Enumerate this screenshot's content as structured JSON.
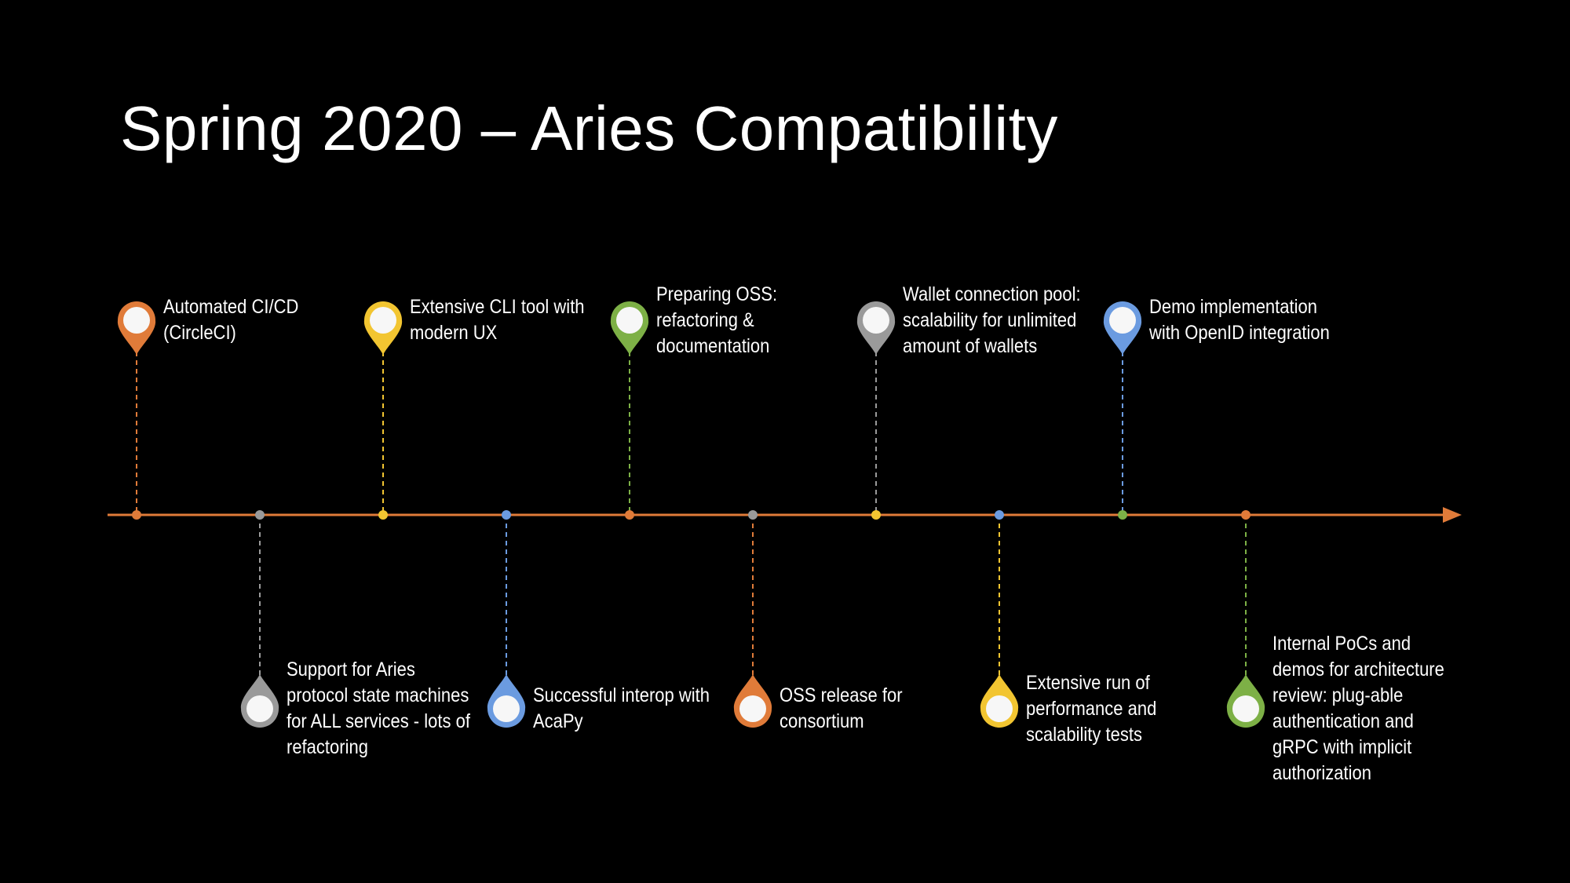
{
  "title": "Spring 2020 – Aries Compatibility",
  "colors": {
    "axis": "#e07b39",
    "orange": "#e07b39",
    "gray": "#9a9a9a",
    "yellow": "#f2c531",
    "blue": "#6b9be0",
    "green": "#7db046",
    "pin_inner": "#f7f7f7"
  },
  "milestones": [
    {
      "id": "m1",
      "color": "orange",
      "position": "above",
      "icon": "map-pin-icon",
      "text": "Automated CI/CD\n(CircleCI)"
    },
    {
      "id": "m2",
      "color": "gray",
      "position": "below",
      "icon": "map-pin-icon",
      "text": "Support for Aries\nprotocol state machines\nfor ALL services - lots of\nrefactoring"
    },
    {
      "id": "m3",
      "color": "yellow",
      "position": "above",
      "icon": "map-pin-icon",
      "text": "Extensive CLI tool with\nmodern UX"
    },
    {
      "id": "m4",
      "color": "blue",
      "position": "below",
      "icon": "map-pin-icon",
      "text": "Successful interop with\nAcaPy"
    },
    {
      "id": "m5",
      "color": "green",
      "position": "above",
      "icon": "map-pin-icon",
      "text": "Preparing OSS:\nrefactoring &\ndocumentation"
    },
    {
      "id": "m6",
      "color": "orange",
      "position": "below",
      "icon": "map-pin-icon",
      "text": "OSS release for\nconsortium"
    },
    {
      "id": "m7",
      "color": "gray",
      "position": "above",
      "icon": "map-pin-icon",
      "text": "Wallet connection pool:\nscalability for unlimited\namount of wallets"
    },
    {
      "id": "m8",
      "color": "yellow",
      "position": "below",
      "icon": "map-pin-icon",
      "text": "Extensive run of\nperformance and\nscalability tests"
    },
    {
      "id": "m9",
      "color": "blue",
      "position": "above",
      "icon": "map-pin-icon",
      "text": "Demo implementation\nwith OpenID integration"
    },
    {
      "id": "m10",
      "color": "green",
      "position": "below",
      "icon": "map-pin-icon",
      "text": "Internal PoCs and\ndemos for architecture\nreview: plug-able\nauthentication and\ngRPC with implicit\nauthorization"
    }
  ],
  "axis_dots": [
    "orange",
    "gray",
    "yellow",
    "blue",
    "orange",
    "gray",
    "yellow",
    "blue",
    "green",
    "orange"
  ]
}
